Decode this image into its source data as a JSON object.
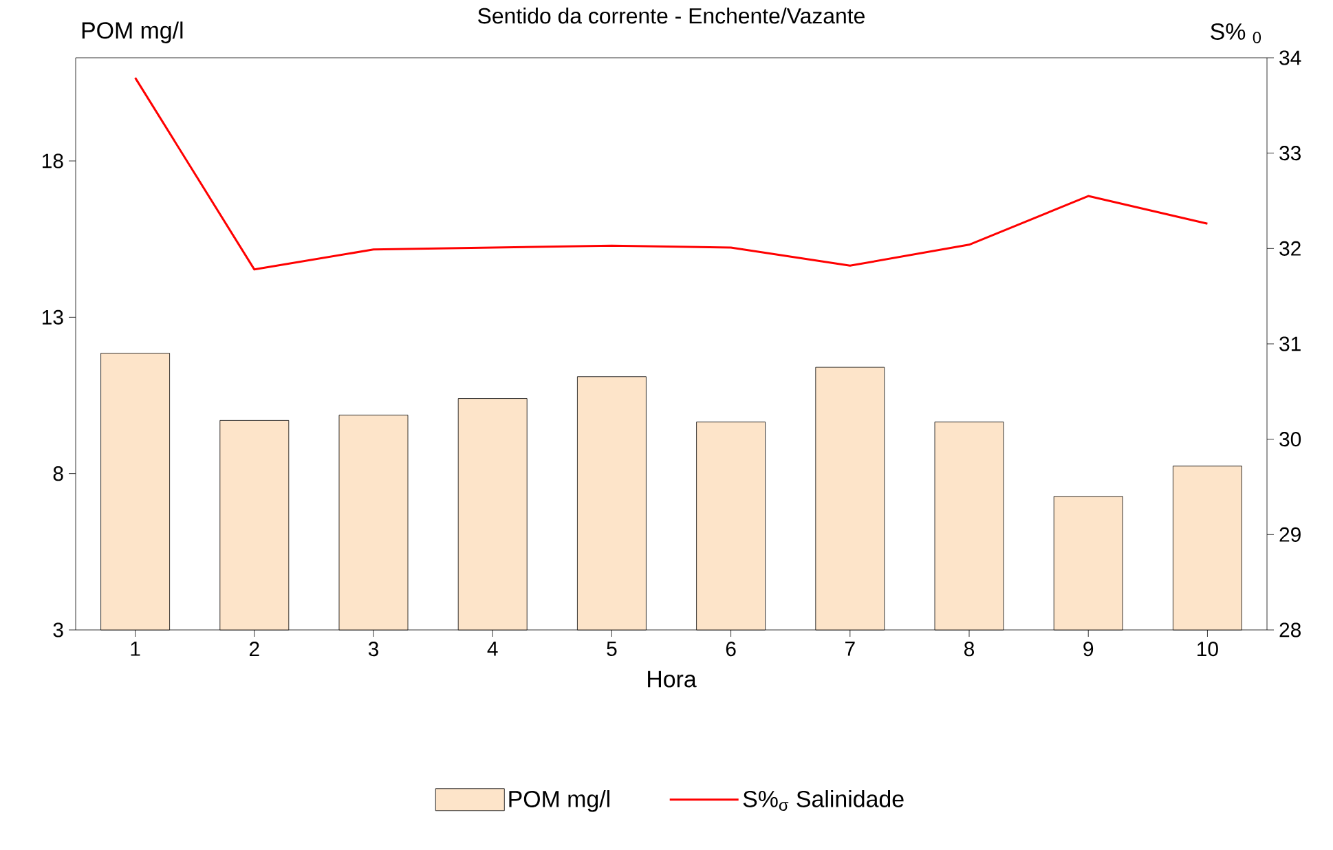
{
  "chart_data": {
    "type": "bar",
    "title": "Sentido da corrente - Enchente/Vazante",
    "xlabel": "Hora",
    "ylabel": "POM mg/l",
    "y2label": "S% $_{0}$",
    "categories": [
      "1",
      "2",
      "3",
      "4",
      "5",
      "6",
      "7",
      "8",
      "9",
      "10"
    ],
    "series": [
      {
        "name": "POM mg/l",
        "color": "#fde4c9",
        "values": [
          11.85,
          9.7,
          9.87,
          10.4,
          11.1,
          9.65,
          11.4,
          9.65,
          7.27,
          8.24
        ]
      },
      {
        "name": "S%$_{σ}$  Salinidade",
        "type": "line",
        "axis": "y2",
        "color": "#ff0000",
        "values": [
          33.79,
          31.78,
          31.99,
          32.01,
          32.03,
          32.01,
          31.82,
          32.04,
          32.55,
          32.26
        ]
      }
    ],
    "ylim": [
      3,
      21.3
    ],
    "yticks": [
      3,
      8,
      13,
      18
    ],
    "y2lim": [
      28,
      34
    ],
    "y2ticks": [
      28,
      29,
      30,
      31,
      32,
      33,
      34
    ],
    "legend": "bottom"
  }
}
